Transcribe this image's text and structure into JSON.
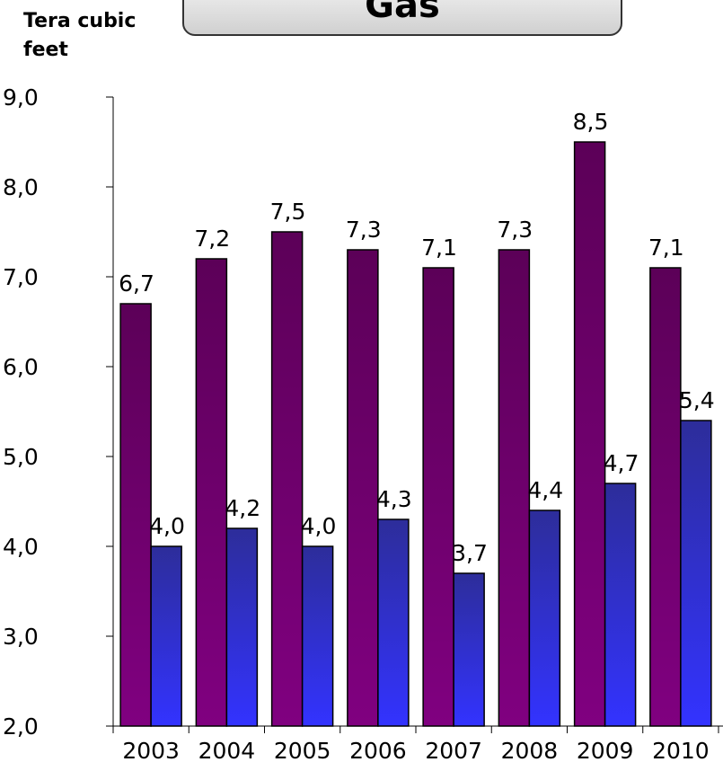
{
  "chart_data": {
    "type": "bar",
    "title": "Gas",
    "ylabel": "Tera cubic feet",
    "xlabel": "",
    "categories": [
      "2003",
      "2004",
      "2005",
      "2006",
      "2007",
      "2008",
      "2009",
      "2010"
    ],
    "series": [
      {
        "values": [
          6.7,
          7.2,
          7.5,
          7.3,
          7.1,
          7.3,
          8.5,
          7.1
        ]
      },
      {
        "values": [
          4.0,
          4.2,
          4.0,
          4.3,
          3.7,
          4.4,
          4.7,
          5.4
        ]
      }
    ],
    "value_labels": [
      [
        "6,7",
        "7,2",
        "7,5",
        "7,3",
        "7,1",
        "7,3",
        "8,5",
        "7,1"
      ],
      [
        "4,0",
        "4,2",
        "4,0",
        "4,3",
        "3,7",
        "4,4",
        "4,7",
        "5,4"
      ]
    ],
    "yticks": [
      "2,0",
      "3,0",
      "4,0",
      "5,0",
      "6,0",
      "7,0",
      "8,0",
      "9,0"
    ],
    "ylim": [
      2,
      9
    ],
    "grid": false,
    "legend": "none",
    "colors": {
      "series1_top": "#5c0058",
      "series1_bottom": "#800080",
      "series2_top": "#2d2d9a",
      "series2_bottom": "#3333ff",
      "outline": "#000000"
    }
  }
}
